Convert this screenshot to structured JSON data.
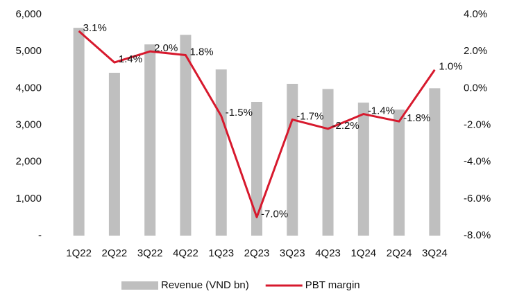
{
  "chart_data": {
    "type": "bar_line",
    "categories": [
      "1Q22",
      "2Q22",
      "3Q22",
      "4Q22",
      "1Q23",
      "2Q23",
      "3Q23",
      "4Q23",
      "1Q24",
      "2Q24",
      "3Q24"
    ],
    "series": [
      {
        "name": "Revenue (VND bn)",
        "color": "#bfbfbf",
        "type": "bar",
        "values": [
          5640,
          4420,
          5190,
          5450,
          4510,
          3630,
          4120,
          3980,
          3610,
          3420,
          4000
        ]
      },
      {
        "name": "PBT margin",
        "color": "#d7192d",
        "type": "line",
        "axis": "y2",
        "values": [
          3.1,
          1.4,
          2.0,
          1.8,
          -1.5,
          -7.0,
          -1.7,
          -2.2,
          -1.4,
          -1.8,
          1.0
        ],
        "value_labels": [
          "3.1%",
          "1.4%",
          "2.0%",
          "1.8%",
          "-1.5%",
          "-7.0%",
          "-1.7%",
          "-2.2%",
          "-1.4%",
          "-1.8%",
          "1.0%"
        ]
      }
    ],
    "ylim": [
      0,
      6000
    ],
    "yticks": [
      {
        "value": 0,
        "label": "-"
      },
      {
        "value": 1000,
        "label": "1,000"
      },
      {
        "value": 2000,
        "label": "2,000"
      },
      {
        "value": 3000,
        "label": "3,000"
      },
      {
        "value": 4000,
        "label": "4,000"
      },
      {
        "value": 5000,
        "label": "5,000"
      },
      {
        "value": 6000,
        "label": "6,000"
      }
    ],
    "y2lim": [
      -8,
      4
    ],
    "y2ticks": [
      {
        "value": -8,
        "label": "-8.0%"
      },
      {
        "value": -6,
        "label": "-6.0%"
      },
      {
        "value": -4,
        "label": "-4.0%"
      },
      {
        "value": -2,
        "label": "-2.0%"
      },
      {
        "value": 0,
        "label": "0.0%"
      },
      {
        "value": 2,
        "label": "2.0%"
      },
      {
        "value": 4,
        "label": "4.0%"
      }
    ],
    "legend": "bottom"
  }
}
